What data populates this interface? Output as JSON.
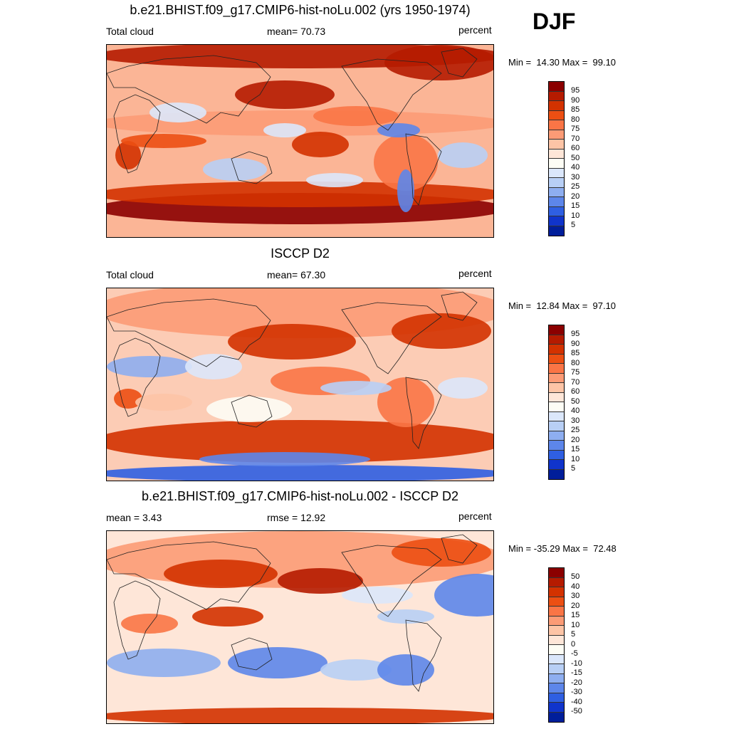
{
  "season": "DJF",
  "panels": [
    {
      "title": "b.e21.BHIST.f09_g17.CMIP6-hist-noLu.002 (yrs 1950-1974)",
      "left_label": "Total cloud",
      "center_label": "mean=  70.73",
      "right_label": "percent",
      "minmax": "Min =  14.30 Max =  99.10",
      "colorbar_labels": [
        "95",
        "90",
        "85",
        "80",
        "75",
        "70",
        "60",
        "50",
        "40",
        "30",
        "25",
        "20",
        "15",
        "10",
        "5"
      ],
      "variant": "model"
    },
    {
      "title": "ISCCP D2",
      "left_label": "Total cloud",
      "center_label": "mean=  67.30",
      "right_label": "percent",
      "minmax": "Min =  12.84 Max =  97.10",
      "colorbar_labels": [
        "95",
        "90",
        "85",
        "80",
        "75",
        "70",
        "60",
        "50",
        "40",
        "30",
        "25",
        "20",
        "15",
        "10",
        "5"
      ],
      "variant": "obs"
    },
    {
      "title": "b.e21.BHIST.f09_g17.CMIP6-hist-noLu.002 - ISCCP D2",
      "left_label": "mean =   3.43",
      "center_label": "rmse =  12.92",
      "right_label": "percent",
      "minmax": "Min = -35.29 Max =  72.48",
      "colorbar_labels": [
        "50",
        "40",
        "30",
        "20",
        "15",
        "10",
        "5",
        "0",
        "-5",
        "-10",
        "-15",
        "-20",
        "-30",
        "-40",
        "-50"
      ],
      "variant": "diff"
    }
  ],
  "colorbar_colors": [
    "#8b0000",
    "#b51b00",
    "#d33200",
    "#ec4f13",
    "#fa7546",
    "#fc9b76",
    "#fdc4a6",
    "#fee6d8",
    "#fdfdf5",
    "#dbe7fb",
    "#b8cff5",
    "#8eaef0",
    "#5d86ea",
    "#2f5fe2",
    "#1034cb",
    "#001e9a",
    "#000a78"
  ]
}
